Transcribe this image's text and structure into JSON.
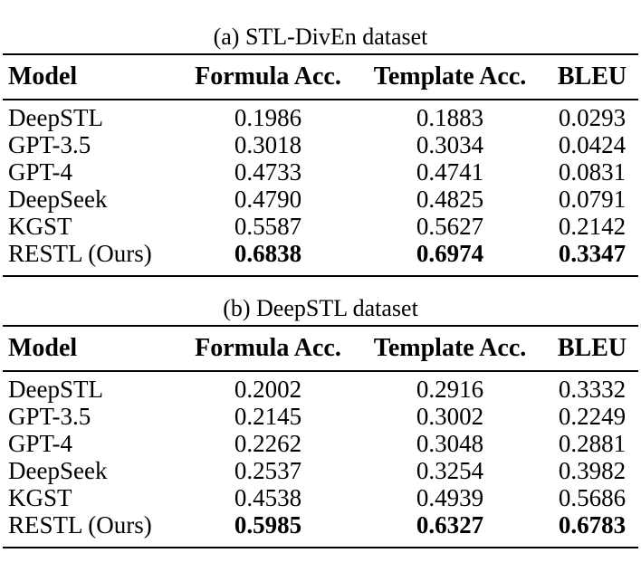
{
  "page": {
    "background": "#ffffff",
    "text_color": "#000000",
    "rule_color": "#000000"
  },
  "tables": [
    {
      "caption": "(a) STL-DivEn dataset",
      "columns": [
        "Model",
        "Formula Acc.",
        "Template Acc.",
        "BLEU"
      ],
      "rows": [
        [
          "DeepSTL",
          "0.1986",
          "0.1883",
          "0.0293"
        ],
        [
          "GPT-3.5",
          "0.3018",
          "0.3034",
          "0.0424"
        ],
        [
          "GPT-4",
          "0.4733",
          "0.4741",
          "0.0831"
        ],
        [
          "DeepSeek",
          "0.4790",
          "0.4825",
          "0.0791"
        ],
        [
          "KGST",
          "0.5587",
          "0.5627",
          "0.2142"
        ],
        [
          "RESTL (Ours)",
          "0.6838",
          "0.6974",
          "0.3347"
        ]
      ],
      "emphasized_row": "RESTL (Ours)"
    },
    {
      "caption": "(b) DeepSTL dataset",
      "columns": [
        "Model",
        "Formula Acc.",
        "Template Acc.",
        "BLEU"
      ],
      "rows": [
        [
          "DeepSTL",
          "0.2002",
          "0.2916",
          "0.3332"
        ],
        [
          "GPT-3.5",
          "0.2145",
          "0.3002",
          "0.2249"
        ],
        [
          "GPT-4",
          "0.2262",
          "0.3048",
          "0.2881"
        ],
        [
          "DeepSeek",
          "0.2537",
          "0.3254",
          "0.3982"
        ],
        [
          "KGST",
          "0.4538",
          "0.4939",
          "0.5686"
        ],
        [
          "RESTL (Ours)",
          "0.5985",
          "0.6327",
          "0.6783"
        ]
      ],
      "emphasized_row": "RESTL (Ours)"
    }
  ],
  "chart_data": {
    "type": "table",
    "tables": [
      {
        "title": "(a) STL-DivEn dataset",
        "columns": [
          "Model",
          "Formula Acc.",
          "Template Acc.",
          "BLEU"
        ],
        "series": [
          {
            "name": "DeepSTL",
            "values": [
              0.1986,
              0.1883,
              0.0293
            ]
          },
          {
            "name": "GPT-3.5",
            "values": [
              0.3018,
              0.3034,
              0.0424
            ]
          },
          {
            "name": "GPT-4",
            "values": [
              0.4733,
              0.4741,
              0.0831
            ]
          },
          {
            "name": "DeepSeek",
            "values": [
              0.479,
              0.4825,
              0.0791
            ]
          },
          {
            "name": "KGST",
            "values": [
              0.5587,
              0.5627,
              0.2142
            ]
          },
          {
            "name": "RESTL (Ours)",
            "values": [
              0.6838,
              0.6974,
              0.3347
            ]
          }
        ]
      },
      {
        "title": "(b) DeepSTL dataset",
        "columns": [
          "Model",
          "Formula Acc.",
          "Template Acc.",
          "BLEU"
        ],
        "series": [
          {
            "name": "DeepSTL",
            "values": [
              0.2002,
              0.2916,
              0.3332
            ]
          },
          {
            "name": "GPT-3.5",
            "values": [
              0.2145,
              0.3002,
              0.2249
            ]
          },
          {
            "name": "GPT-4",
            "values": [
              0.2262,
              0.3048,
              0.2881
            ]
          },
          {
            "name": "DeepSeek",
            "values": [
              0.2537,
              0.3254,
              0.3982
            ]
          },
          {
            "name": "KGST",
            "values": [
              0.4538,
              0.4939,
              0.5686
            ]
          },
          {
            "name": "RESTL (Ours)",
            "values": [
              0.5985,
              0.6327,
              0.6783
            ]
          }
        ]
      }
    ]
  }
}
